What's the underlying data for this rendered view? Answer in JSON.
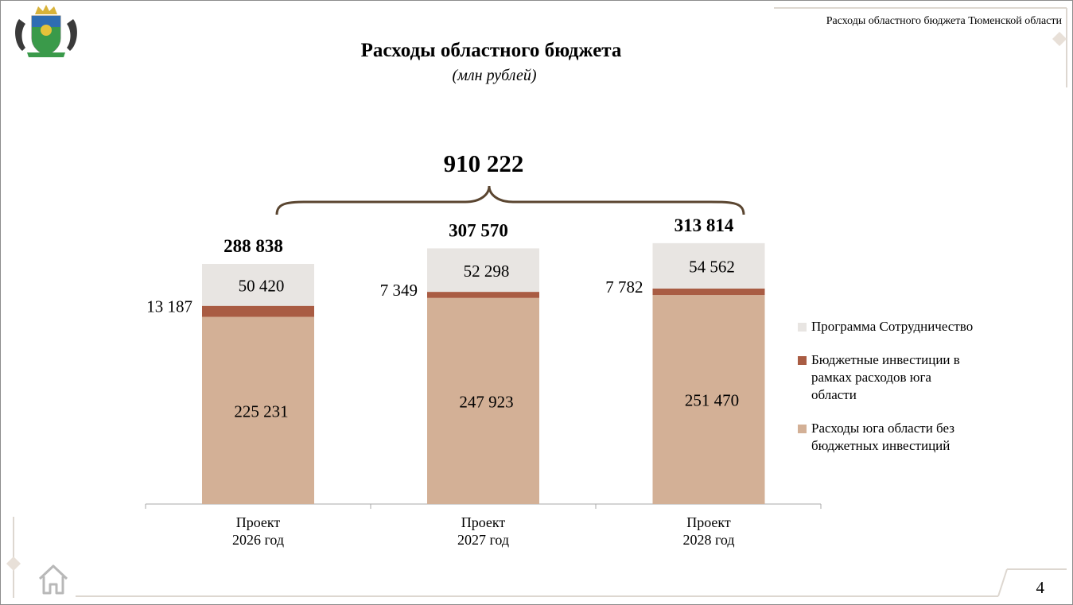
{
  "header": {
    "text": "Расходы областного бюджета Тюменской области"
  },
  "page_number": "4",
  "icons": {
    "emblem": "coat-of-arms-icon",
    "home": "home-icon"
  },
  "colors": {
    "cooperation": "#e8e5e2",
    "investments": "#a95c43",
    "south": "#d3b096",
    "brace": "#5a4530",
    "axis": "#aaaaaa"
  },
  "chart_data": {
    "type": "bar",
    "stacked": true,
    "title": "Расходы областного бюджета",
    "subtitle": "(млн рублей)",
    "categories": [
      "Проект 2026 год",
      "Проект 2027 год",
      "Проект 2028 год"
    ],
    "category_lines": [
      [
        "Проект",
        "2026 год"
      ],
      [
        "Проект",
        "2027 год"
      ],
      [
        "Проект",
        "2028 год"
      ]
    ],
    "series": [
      {
        "name": "Расходы юга области без бюджетных инвестиций",
        "values": [
          225231,
          247923,
          251470
        ],
        "labels": [
          "225 231",
          "247 923",
          "251 470"
        ]
      },
      {
        "name": "Бюджетные инвестиции в рамках расходов юга области",
        "values": [
          13187,
          7349,
          7782
        ],
        "labels": [
          "13 187",
          "7 349",
          "7 782"
        ]
      },
      {
        "name": "Программа Сотрудничество",
        "values": [
          50420,
          52298,
          54562
        ],
        "labels": [
          "50 420",
          "52 298",
          "54 562"
        ]
      }
    ],
    "totals": [
      288838,
      307570,
      313814
    ],
    "total_labels": [
      "288 838",
      "307 570",
      "313 814"
    ],
    "grand_total": 910222,
    "grand_total_label": "910 222",
    "legend": [
      {
        "name": "Программа Сотрудничество",
        "lines": [
          "Программа Сотрудничество"
        ]
      },
      {
        "name": "Бюджетные инвестиции в рамках расходов юга области",
        "lines": [
          "Бюджетные инвестиции в",
          "рамках расходов юга",
          "области"
        ]
      },
      {
        "name": "Расходы юга области без бюджетных инвестиций",
        "lines": [
          "Расходы юга области без",
          "бюджетных инвестиций"
        ]
      }
    ],
    "legend_position": "right",
    "grid": false
  }
}
